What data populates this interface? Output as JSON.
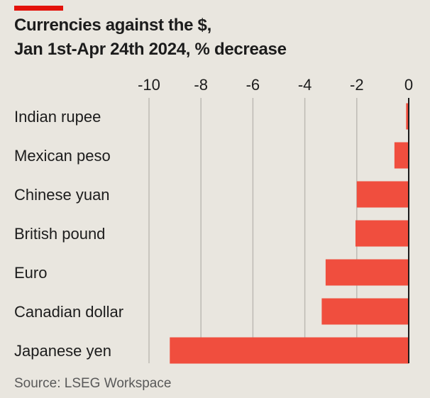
{
  "header": {
    "title_line1": "Currencies against the $,",
    "title_line2": "Jan 1st-Apr 24th 2024, % decrease"
  },
  "footer": {
    "source": "Source: LSEG Workspace"
  },
  "colors": {
    "bar": "#f04e3e",
    "accent": "#e3120b",
    "background": "#e9e6df",
    "grid": "#bdbab4",
    "zero_line": "#1c1c1c"
  },
  "chart_data": {
    "type": "bar",
    "orientation": "horizontal",
    "title": "Currencies against the $, Jan 1st-Apr 24th 2024, % decrease",
    "categories": [
      "Indian rupee",
      "Mexican peso",
      "Chinese yuan",
      "British pound",
      "Euro",
      "Canadian dollar",
      "Japanese yen"
    ],
    "values": [
      -0.1,
      -0.55,
      -2.0,
      -2.05,
      -3.2,
      -3.35,
      -9.2
    ],
    "xlim": [
      -10,
      0
    ],
    "ticks": [
      -10,
      -8,
      -6,
      -4,
      -2,
      0
    ],
    "tick_labels": [
      "-10",
      "-8",
      "-6",
      "-4",
      "-2",
      "0"
    ],
    "grid": true,
    "axis_position": "top"
  }
}
